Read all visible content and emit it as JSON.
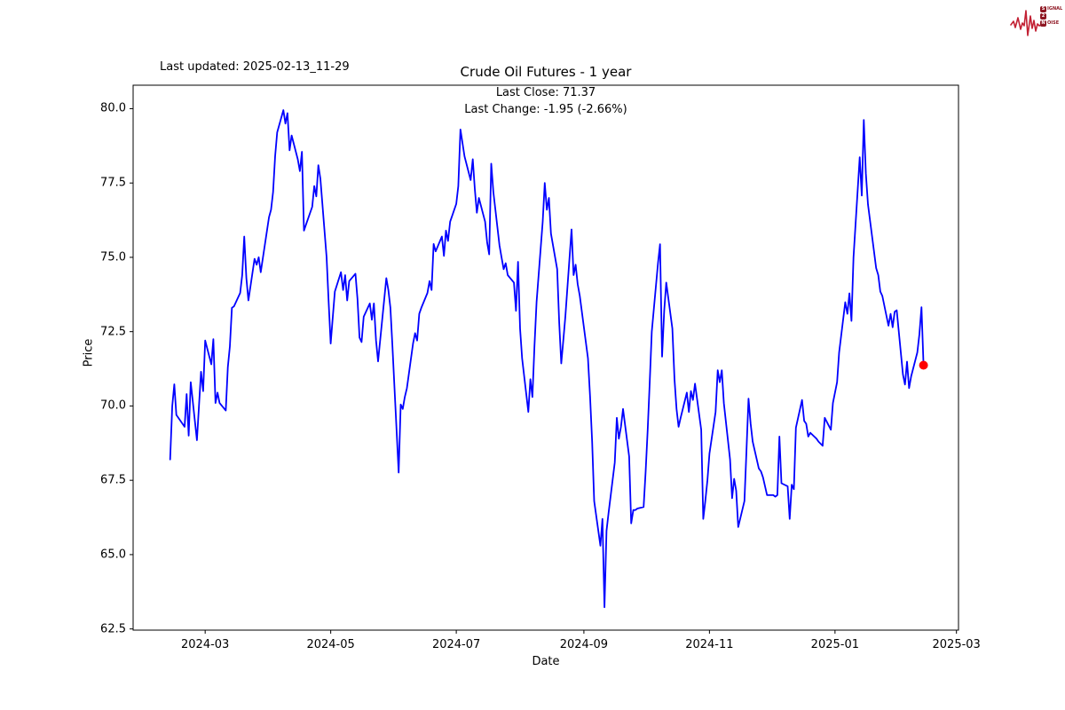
{
  "annotations": {
    "last_updated": "Last updated: 2025-02-13_11-29"
  },
  "logo": {
    "row1_initial": "S",
    "row1_rest": "IGNAL",
    "row2_initial": "2",
    "row2_rest": "",
    "row3_initial": "N",
    "row3_rest": "OISE",
    "text_color": "#8e1622",
    "box_color": "#8e1622",
    "wave_color": "#c22033"
  },
  "chart_data": {
    "type": "line",
    "title": "Crude Oil Futures - 1 year",
    "subtitle_line1": "Last Close: 71.37",
    "subtitle_line2": "Last Change: -1.95 (-2.66%)",
    "xlabel": "Date",
    "ylabel": "Price",
    "last_close": 71.37,
    "last_change": -1.95,
    "last_change_pct": -2.66,
    "line_color": "#0000ff",
    "marker_color": "#ff0000",
    "grid": false,
    "x_axis": {
      "min": "2024-01-26",
      "max": "2025-03-02",
      "ticks": [
        {
          "label": "2024-03",
          "date": "2024-03-01"
        },
        {
          "label": "2024-05",
          "date": "2024-05-01"
        },
        {
          "label": "2024-07",
          "date": "2024-07-01"
        },
        {
          "label": "2024-09",
          "date": "2024-09-01"
        },
        {
          "label": "2024-11",
          "date": "2024-11-01"
        },
        {
          "label": "2025-01",
          "date": "2025-01-01"
        },
        {
          "label": "2025-03",
          "date": "2025-03-01"
        }
      ]
    },
    "y_axis": {
      "min": 62.46,
      "max": 80.79,
      "ticks": [
        62.5,
        65.0,
        67.5,
        70.0,
        72.5,
        75.0,
        77.5,
        80.0
      ]
    },
    "series": [
      {
        "name": "Crude Oil Futures",
        "points": [
          [
            "2024-02-13",
            68.2
          ],
          [
            "2024-02-14",
            70.0
          ],
          [
            "2024-02-15",
            70.73
          ],
          [
            "2024-02-16",
            69.7
          ],
          [
            "2024-02-20",
            69.3
          ],
          [
            "2024-02-21",
            70.4
          ],
          [
            "2024-02-22",
            69.0
          ],
          [
            "2024-02-23",
            70.8
          ],
          [
            "2024-02-26",
            68.85
          ],
          [
            "2024-02-27",
            70.0
          ],
          [
            "2024-02-28",
            71.15
          ],
          [
            "2024-02-29",
            70.5
          ],
          [
            "2024-03-01",
            72.2
          ],
          [
            "2024-03-04",
            71.4
          ],
          [
            "2024-03-05",
            72.25
          ],
          [
            "2024-03-06",
            70.1
          ],
          [
            "2024-03-07",
            70.45
          ],
          [
            "2024-03-08",
            70.1
          ],
          [
            "2024-03-11",
            69.85
          ],
          [
            "2024-03-12",
            71.3
          ],
          [
            "2024-03-13",
            72.0
          ],
          [
            "2024-03-14",
            73.3
          ],
          [
            "2024-03-15",
            73.35
          ],
          [
            "2024-03-18",
            73.8
          ],
          [
            "2024-03-19",
            74.4
          ],
          [
            "2024-03-20",
            75.7
          ],
          [
            "2024-03-21",
            74.3
          ],
          [
            "2024-03-22",
            73.55
          ],
          [
            "2024-03-25",
            74.95
          ],
          [
            "2024-03-26",
            74.75
          ],
          [
            "2024-03-27",
            75.0
          ],
          [
            "2024-03-28",
            74.5
          ],
          [
            "2024-04-01",
            76.35
          ],
          [
            "2024-04-02",
            76.6
          ],
          [
            "2024-04-03",
            77.2
          ],
          [
            "2024-04-04",
            78.4
          ],
          [
            "2024-04-05",
            79.2
          ],
          [
            "2024-04-08",
            79.95
          ],
          [
            "2024-04-09",
            79.5
          ],
          [
            "2024-04-10",
            79.85
          ],
          [
            "2024-04-11",
            78.6
          ],
          [
            "2024-04-12",
            79.1
          ],
          [
            "2024-04-15",
            78.3
          ],
          [
            "2024-04-16",
            77.9
          ],
          [
            "2024-04-17",
            78.55
          ],
          [
            "2024-04-18",
            75.9
          ],
          [
            "2024-04-19",
            76.1
          ],
          [
            "2024-04-22",
            76.7
          ],
          [
            "2024-04-23",
            77.4
          ],
          [
            "2024-04-24",
            77.05
          ],
          [
            "2024-04-25",
            78.1
          ],
          [
            "2024-04-26",
            77.65
          ],
          [
            "2024-04-29",
            75.0
          ],
          [
            "2024-04-30",
            73.5
          ],
          [
            "2024-05-01",
            72.1
          ],
          [
            "2024-05-02",
            73.0
          ],
          [
            "2024-05-03",
            73.85
          ],
          [
            "2024-05-06",
            74.5
          ],
          [
            "2024-05-07",
            73.9
          ],
          [
            "2024-05-08",
            74.4
          ],
          [
            "2024-05-09",
            73.55
          ],
          [
            "2024-05-10",
            74.2
          ],
          [
            "2024-05-13",
            74.45
          ],
          [
            "2024-05-14",
            73.6
          ],
          [
            "2024-05-15",
            72.3
          ],
          [
            "2024-05-16",
            72.15
          ],
          [
            "2024-05-17",
            73.0
          ],
          [
            "2024-05-20",
            73.45
          ],
          [
            "2024-05-21",
            72.9
          ],
          [
            "2024-05-22",
            73.45
          ],
          [
            "2024-05-23",
            72.2
          ],
          [
            "2024-05-24",
            71.5
          ],
          [
            "2024-05-28",
            74.3
          ],
          [
            "2024-05-29",
            73.9
          ],
          [
            "2024-05-30",
            73.3
          ],
          [
            "2024-05-31",
            72.0
          ],
          [
            "2024-06-03",
            67.76
          ],
          [
            "2024-06-04",
            70.05
          ],
          [
            "2024-06-05",
            69.9
          ],
          [
            "2024-06-06",
            70.3
          ],
          [
            "2024-06-07",
            70.6
          ],
          [
            "2024-06-10",
            72.1
          ],
          [
            "2024-06-11",
            72.45
          ],
          [
            "2024-06-12",
            72.2
          ],
          [
            "2024-06-13",
            73.1
          ],
          [
            "2024-06-14",
            73.3
          ],
          [
            "2024-06-17",
            73.8
          ],
          [
            "2024-06-18",
            74.2
          ],
          [
            "2024-06-19",
            73.9
          ],
          [
            "2024-06-20",
            75.45
          ],
          [
            "2024-06-21",
            75.2
          ],
          [
            "2024-06-24",
            75.7
          ],
          [
            "2024-06-25",
            75.05
          ],
          [
            "2024-06-26",
            75.9
          ],
          [
            "2024-06-27",
            75.55
          ],
          [
            "2024-06-28",
            76.2
          ],
          [
            "2024-07-01",
            76.8
          ],
          [
            "2024-07-02",
            77.4
          ],
          [
            "2024-07-03",
            79.3
          ],
          [
            "2024-07-05",
            78.4
          ],
          [
            "2024-07-08",
            77.6
          ],
          [
            "2024-07-09",
            78.3
          ],
          [
            "2024-07-10",
            77.3
          ],
          [
            "2024-07-11",
            76.5
          ],
          [
            "2024-07-12",
            77.0
          ],
          [
            "2024-07-15",
            76.2
          ],
          [
            "2024-07-16",
            75.5
          ],
          [
            "2024-07-17",
            75.1
          ],
          [
            "2024-07-18",
            78.15
          ],
          [
            "2024-07-19",
            77.2
          ],
          [
            "2024-07-22",
            75.4
          ],
          [
            "2024-07-23",
            75.0
          ],
          [
            "2024-07-24",
            74.6
          ],
          [
            "2024-07-25",
            74.8
          ],
          [
            "2024-07-26",
            74.4
          ],
          [
            "2024-07-29",
            74.15
          ],
          [
            "2024-07-30",
            73.2
          ],
          [
            "2024-07-31",
            74.85
          ],
          [
            "2024-08-01",
            72.6
          ],
          [
            "2024-08-02",
            71.6
          ],
          [
            "2024-08-05",
            69.8
          ],
          [
            "2024-08-06",
            70.9
          ],
          [
            "2024-08-07",
            70.3
          ],
          [
            "2024-08-08",
            72.0
          ],
          [
            "2024-08-09",
            73.5
          ],
          [
            "2024-08-12",
            76.2
          ],
          [
            "2024-08-13",
            77.5
          ],
          [
            "2024-08-14",
            76.6
          ],
          [
            "2024-08-15",
            77.0
          ],
          [
            "2024-08-16",
            75.8
          ],
          [
            "2024-08-19",
            74.6
          ],
          [
            "2024-08-20",
            72.8
          ],
          [
            "2024-08-21",
            71.43
          ],
          [
            "2024-08-22",
            72.2
          ],
          [
            "2024-08-23",
            73.0
          ],
          [
            "2024-08-26",
            75.94
          ],
          [
            "2024-08-27",
            74.4
          ],
          [
            "2024-08-28",
            74.75
          ],
          [
            "2024-08-29",
            74.1
          ],
          [
            "2024-08-30",
            73.7
          ],
          [
            "2024-09-03",
            71.6
          ],
          [
            "2024-09-04",
            70.3
          ],
          [
            "2024-09-05",
            68.8
          ],
          [
            "2024-09-06",
            66.8
          ],
          [
            "2024-09-09",
            65.3
          ],
          [
            "2024-09-10",
            66.2
          ],
          [
            "2024-09-11",
            63.23
          ],
          [
            "2024-09-12",
            65.8
          ],
          [
            "2024-09-13",
            66.4
          ],
          [
            "2024-09-16",
            68.1
          ],
          [
            "2024-09-17",
            69.6
          ],
          [
            "2024-09-18",
            68.9
          ],
          [
            "2024-09-19",
            69.3
          ],
          [
            "2024-09-20",
            69.9
          ],
          [
            "2024-09-23",
            68.3
          ],
          [
            "2024-09-24",
            66.05
          ],
          [
            "2024-09-25",
            66.5
          ],
          [
            "2024-09-26",
            66.5
          ],
          [
            "2024-09-27",
            66.55
          ],
          [
            "2024-09-30",
            66.6
          ],
          [
            "2024-10-01",
            67.8
          ],
          [
            "2024-10-02",
            69.2
          ],
          [
            "2024-10-03",
            70.8
          ],
          [
            "2024-10-04",
            72.5
          ],
          [
            "2024-10-07",
            74.8
          ],
          [
            "2024-10-08",
            75.44
          ],
          [
            "2024-10-09",
            71.66
          ],
          [
            "2024-10-10",
            73.2
          ],
          [
            "2024-10-11",
            74.15
          ],
          [
            "2024-10-14",
            72.6
          ],
          [
            "2024-10-15",
            70.9
          ],
          [
            "2024-10-16",
            69.9
          ],
          [
            "2024-10-17",
            69.3
          ],
          [
            "2024-10-18",
            69.6
          ],
          [
            "2024-10-21",
            70.45
          ],
          [
            "2024-10-22",
            69.8
          ],
          [
            "2024-10-23",
            70.5
          ],
          [
            "2024-10-24",
            70.2
          ],
          [
            "2024-10-25",
            70.75
          ],
          [
            "2024-10-28",
            69.2
          ],
          [
            "2024-10-29",
            66.2
          ],
          [
            "2024-10-30",
            66.8
          ],
          [
            "2024-10-31",
            67.5
          ],
          [
            "2024-11-01",
            68.4
          ],
          [
            "2024-11-04",
            69.8
          ],
          [
            "2024-11-05",
            71.2
          ],
          [
            "2024-11-06",
            70.8
          ],
          [
            "2024-11-07",
            71.2
          ],
          [
            "2024-11-08",
            70.1
          ],
          [
            "2024-11-11",
            68.2
          ],
          [
            "2024-11-12",
            66.9
          ],
          [
            "2024-11-13",
            67.55
          ],
          [
            "2024-11-14",
            67.15
          ],
          [
            "2024-11-15",
            65.93
          ],
          [
            "2024-11-18",
            66.8
          ],
          [
            "2024-11-19",
            68.5
          ],
          [
            "2024-11-20",
            70.25
          ],
          [
            "2024-11-21",
            69.4
          ],
          [
            "2024-11-22",
            68.8
          ],
          [
            "2024-11-25",
            67.9
          ],
          [
            "2024-11-26",
            67.8
          ],
          [
            "2024-11-27",
            67.6
          ],
          [
            "2024-11-29",
            67.0
          ],
          [
            "2024-12-02",
            67.0
          ],
          [
            "2024-12-03",
            66.95
          ],
          [
            "2024-12-04",
            67.0
          ],
          [
            "2024-12-05",
            68.97
          ],
          [
            "2024-12-06",
            67.4
          ],
          [
            "2024-12-09",
            67.3
          ],
          [
            "2024-12-10",
            66.2
          ],
          [
            "2024-12-11",
            67.35
          ],
          [
            "2024-12-12",
            67.2
          ],
          [
            "2024-12-13",
            69.27
          ],
          [
            "2024-12-16",
            70.2
          ],
          [
            "2024-12-17",
            69.5
          ],
          [
            "2024-12-18",
            69.4
          ],
          [
            "2024-12-19",
            68.97
          ],
          [
            "2024-12-20",
            69.1
          ],
          [
            "2024-12-23",
            68.9
          ],
          [
            "2024-12-24",
            68.8
          ],
          [
            "2024-12-26",
            68.66
          ],
          [
            "2024-12-27",
            69.6
          ],
          [
            "2024-12-30",
            69.2
          ],
          [
            "2024-12-31",
            70.1
          ],
          [
            "2025-01-02",
            70.8
          ],
          [
            "2025-01-03",
            71.8
          ],
          [
            "2025-01-06",
            73.49
          ],
          [
            "2025-01-07",
            73.1
          ],
          [
            "2025-01-08",
            73.79
          ],
          [
            "2025-01-09",
            72.86
          ],
          [
            "2025-01-10",
            75.0
          ],
          [
            "2025-01-13",
            78.37
          ],
          [
            "2025-01-14",
            77.08
          ],
          [
            "2025-01-15",
            79.62
          ],
          [
            "2025-01-16",
            77.83
          ],
          [
            "2025-01-17",
            76.78
          ],
          [
            "2025-01-21",
            74.64
          ],
          [
            "2025-01-22",
            74.4
          ],
          [
            "2025-01-23",
            73.85
          ],
          [
            "2025-01-24",
            73.7
          ],
          [
            "2025-01-27",
            72.7
          ],
          [
            "2025-01-28",
            73.1
          ],
          [
            "2025-01-29",
            72.65
          ],
          [
            "2025-01-30",
            73.17
          ],
          [
            "2025-01-31",
            73.22
          ],
          [
            "2025-02-03",
            71.06
          ],
          [
            "2025-02-04",
            70.72
          ],
          [
            "2025-02-05",
            71.49
          ],
          [
            "2025-02-06",
            70.6
          ],
          [
            "2025-02-07",
            71.0
          ],
          [
            "2025-02-10",
            71.8
          ],
          [
            "2025-02-11",
            72.4
          ],
          [
            "2025-02-12",
            73.32
          ],
          [
            "2025-02-13",
            71.37
          ]
        ]
      }
    ]
  }
}
